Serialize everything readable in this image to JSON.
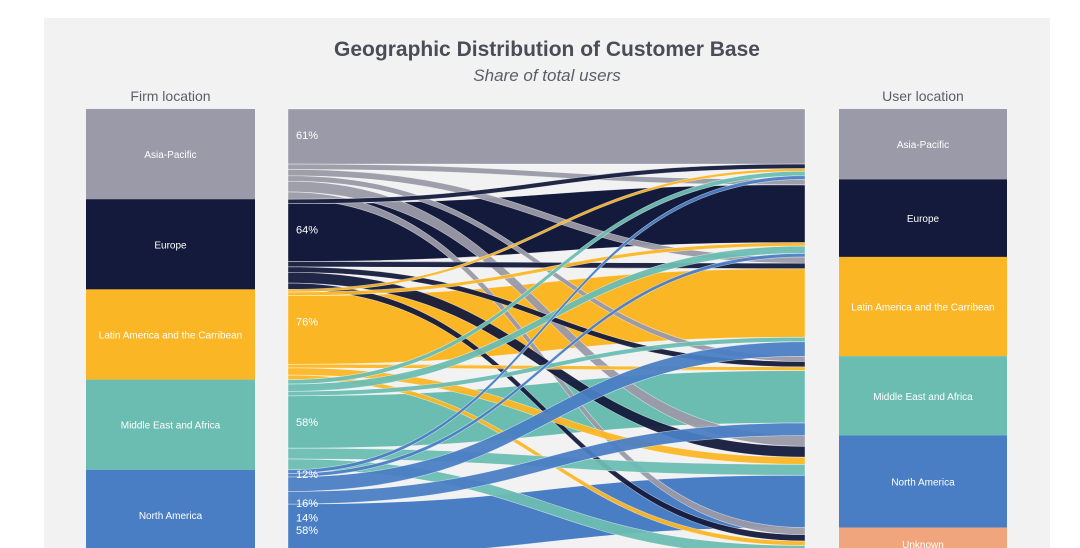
{
  "chart_data": {
    "type": "sankey",
    "title": "Geographic Distribution of Customer Base",
    "subtitle": "Share of total users",
    "left_header": "Firm location",
    "right_header": "User location",
    "colors": {
      "Asia-Pacific": "#9a9aa8",
      "Europe": "#141a3b",
      "Latin America and the Carribean": "#fbb625",
      "Middle East and Africa": "#6bbdb2",
      "North America": "#4a7ec4",
      "Unknown": "#f0a57c"
    },
    "firm_locations": [
      {
        "name": "Asia-Pacific",
        "label": "Asia-Pacific"
      },
      {
        "name": "Europe",
        "label": "Europe"
      },
      {
        "name": "Latin America and the Carribean",
        "label": "Latin America and the Carribean"
      },
      {
        "name": "Middle East and Africa",
        "label": "Middle East and Africa"
      },
      {
        "name": "North America",
        "label": "North America"
      }
    ],
    "user_locations": [
      {
        "name": "Asia-Pacific",
        "label": "Asia-Pacific"
      },
      {
        "name": "Europe",
        "label": "Europe"
      },
      {
        "name": "Latin America and the Carribean",
        "label": "Latin America and the Carribean"
      },
      {
        "name": "Middle East and Africa",
        "label": "Middle East and Africa"
      },
      {
        "name": "North America",
        "label": "North America"
      },
      {
        "name": "Unknown",
        "label": "Unknown"
      }
    ],
    "annotations": [
      {
        "source": "Asia-Pacific",
        "target": "Asia-Pacific",
        "text": "61%"
      },
      {
        "source": "Europe",
        "target": "Europe",
        "text": "64%"
      },
      {
        "source": "Latin America and the Carribean",
        "target": "Latin America and the Carribean",
        "text": "76%"
      },
      {
        "source": "Middle East and Africa",
        "target": "Middle East and Africa",
        "text": "58%"
      },
      {
        "source": "Middle East and Africa",
        "target": "North America",
        "text": "12%"
      },
      {
        "source": "North America",
        "target": "Middle East and Africa",
        "text": "14%"
      },
      {
        "source": "North America",
        "target": "Latin America and the Carribean",
        "text": "16%"
      },
      {
        "source": "North America",
        "target": "North America",
        "text": "58%"
      }
    ],
    "flows": [
      {
        "source": "Asia-Pacific",
        "target": "Asia-Pacific",
        "value": 61
      },
      {
        "source": "Asia-Pacific",
        "target": "Europe",
        "value": 6
      },
      {
        "source": "Asia-Pacific",
        "target": "Latin America and the Carribean",
        "value": 7
      },
      {
        "source": "Asia-Pacific",
        "target": "Middle East and Africa",
        "value": 6
      },
      {
        "source": "Asia-Pacific",
        "target": "North America",
        "value": 12
      },
      {
        "source": "Asia-Pacific",
        "target": "Unknown",
        "value": 8
      },
      {
        "source": "Europe",
        "target": "Asia-Pacific",
        "value": 5
      },
      {
        "source": "Europe",
        "target": "Europe",
        "value": 64
      },
      {
        "source": "Europe",
        "target": "Latin America and the Carribean",
        "value": 6
      },
      {
        "source": "Europe",
        "target": "Middle East and Africa",
        "value": 6
      },
      {
        "source": "Europe",
        "target": "North America",
        "value": 12
      },
      {
        "source": "Europe",
        "target": "Unknown",
        "value": 7
      },
      {
        "source": "Latin America and the Carribean",
        "target": "Asia-Pacific",
        "value": 3
      },
      {
        "source": "Latin America and the Carribean",
        "target": "Europe",
        "value": 4
      },
      {
        "source": "Latin America and the Carribean",
        "target": "Latin America and the Carribean",
        "value": 76
      },
      {
        "source": "Latin America and the Carribean",
        "target": "Middle East and Africa",
        "value": 4
      },
      {
        "source": "Latin America and the Carribean",
        "target": "North America",
        "value": 8
      },
      {
        "source": "Latin America and the Carribean",
        "target": "Unknown",
        "value": 5
      },
      {
        "source": "Middle East and Africa",
        "target": "Asia-Pacific",
        "value": 5
      },
      {
        "source": "Middle East and Africa",
        "target": "Europe",
        "value": 8
      },
      {
        "source": "Middle East and Africa",
        "target": "Latin America and the Carribean",
        "value": 5
      },
      {
        "source": "Middle East and Africa",
        "target": "Middle East and Africa",
        "value": 58
      },
      {
        "source": "Middle East and Africa",
        "target": "North America",
        "value": 12
      },
      {
        "source": "Middle East and Africa",
        "target": "Unknown",
        "value": 12
      },
      {
        "source": "North America",
        "target": "Asia-Pacific",
        "value": 4
      },
      {
        "source": "North America",
        "target": "Europe",
        "value": 4
      },
      {
        "source": "North America",
        "target": "Latin America and the Carribean",
        "value": 16
      },
      {
        "source": "North America",
        "target": "Middle East and Africa",
        "value": 14
      },
      {
        "source": "North America",
        "target": "North America",
        "value": 58
      },
      {
        "source": "North America",
        "target": "Unknown",
        "value": 4
      }
    ]
  }
}
